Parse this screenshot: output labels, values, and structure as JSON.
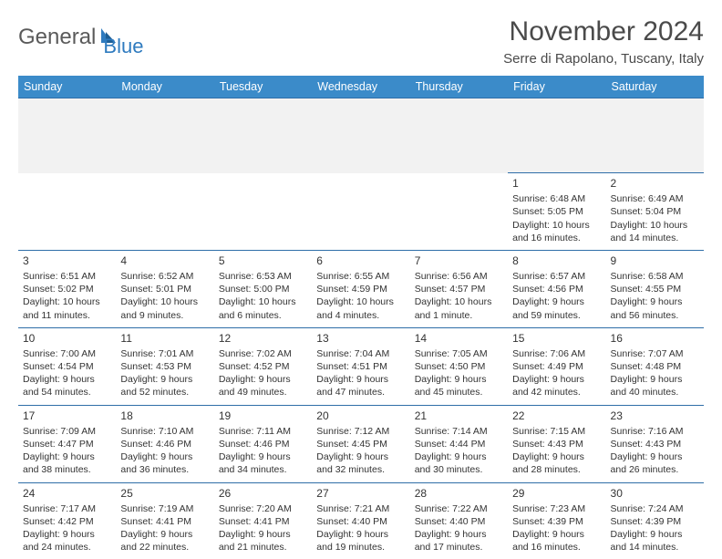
{
  "logo": {
    "part1": "General",
    "part2": "Blue"
  },
  "title": "November 2024",
  "location": "Serre di Rapolano, Tuscany, Italy",
  "colors": {
    "header_bg": "#3b8bc9",
    "header_text": "#ffffff",
    "border": "#2f6ea8",
    "logo_gray": "#5a5a5a",
    "logo_blue": "#2f7bbf",
    "text": "#333333",
    "background": "#ffffff",
    "spacer": "#f2f2f2"
  },
  "weekdays": [
    "Sunday",
    "Monday",
    "Tuesday",
    "Wednesday",
    "Thursday",
    "Friday",
    "Saturday"
  ],
  "weeks": [
    [
      {
        "empty": true
      },
      {
        "empty": true
      },
      {
        "empty": true
      },
      {
        "empty": true
      },
      {
        "empty": true
      },
      {
        "day": "1",
        "sunrise": "Sunrise: 6:48 AM",
        "sunset": "Sunset: 5:05 PM",
        "daylight1": "Daylight: 10 hours",
        "daylight2": "and 16 minutes."
      },
      {
        "day": "2",
        "sunrise": "Sunrise: 6:49 AM",
        "sunset": "Sunset: 5:04 PM",
        "daylight1": "Daylight: 10 hours",
        "daylight2": "and 14 minutes."
      }
    ],
    [
      {
        "day": "3",
        "sunrise": "Sunrise: 6:51 AM",
        "sunset": "Sunset: 5:02 PM",
        "daylight1": "Daylight: 10 hours",
        "daylight2": "and 11 minutes."
      },
      {
        "day": "4",
        "sunrise": "Sunrise: 6:52 AM",
        "sunset": "Sunset: 5:01 PM",
        "daylight1": "Daylight: 10 hours",
        "daylight2": "and 9 minutes."
      },
      {
        "day": "5",
        "sunrise": "Sunrise: 6:53 AM",
        "sunset": "Sunset: 5:00 PM",
        "daylight1": "Daylight: 10 hours",
        "daylight2": "and 6 minutes."
      },
      {
        "day": "6",
        "sunrise": "Sunrise: 6:55 AM",
        "sunset": "Sunset: 4:59 PM",
        "daylight1": "Daylight: 10 hours",
        "daylight2": "and 4 minutes."
      },
      {
        "day": "7",
        "sunrise": "Sunrise: 6:56 AM",
        "sunset": "Sunset: 4:57 PM",
        "daylight1": "Daylight: 10 hours",
        "daylight2": "and 1 minute."
      },
      {
        "day": "8",
        "sunrise": "Sunrise: 6:57 AM",
        "sunset": "Sunset: 4:56 PM",
        "daylight1": "Daylight: 9 hours",
        "daylight2": "and 59 minutes."
      },
      {
        "day": "9",
        "sunrise": "Sunrise: 6:58 AM",
        "sunset": "Sunset: 4:55 PM",
        "daylight1": "Daylight: 9 hours",
        "daylight2": "and 56 minutes."
      }
    ],
    [
      {
        "day": "10",
        "sunrise": "Sunrise: 7:00 AM",
        "sunset": "Sunset: 4:54 PM",
        "daylight1": "Daylight: 9 hours",
        "daylight2": "and 54 minutes."
      },
      {
        "day": "11",
        "sunrise": "Sunrise: 7:01 AM",
        "sunset": "Sunset: 4:53 PM",
        "daylight1": "Daylight: 9 hours",
        "daylight2": "and 52 minutes."
      },
      {
        "day": "12",
        "sunrise": "Sunrise: 7:02 AM",
        "sunset": "Sunset: 4:52 PM",
        "daylight1": "Daylight: 9 hours",
        "daylight2": "and 49 minutes."
      },
      {
        "day": "13",
        "sunrise": "Sunrise: 7:04 AM",
        "sunset": "Sunset: 4:51 PM",
        "daylight1": "Daylight: 9 hours",
        "daylight2": "and 47 minutes."
      },
      {
        "day": "14",
        "sunrise": "Sunrise: 7:05 AM",
        "sunset": "Sunset: 4:50 PM",
        "daylight1": "Daylight: 9 hours",
        "daylight2": "and 45 minutes."
      },
      {
        "day": "15",
        "sunrise": "Sunrise: 7:06 AM",
        "sunset": "Sunset: 4:49 PM",
        "daylight1": "Daylight: 9 hours",
        "daylight2": "and 42 minutes."
      },
      {
        "day": "16",
        "sunrise": "Sunrise: 7:07 AM",
        "sunset": "Sunset: 4:48 PM",
        "daylight1": "Daylight: 9 hours",
        "daylight2": "and 40 minutes."
      }
    ],
    [
      {
        "day": "17",
        "sunrise": "Sunrise: 7:09 AM",
        "sunset": "Sunset: 4:47 PM",
        "daylight1": "Daylight: 9 hours",
        "daylight2": "and 38 minutes."
      },
      {
        "day": "18",
        "sunrise": "Sunrise: 7:10 AM",
        "sunset": "Sunset: 4:46 PM",
        "daylight1": "Daylight: 9 hours",
        "daylight2": "and 36 minutes."
      },
      {
        "day": "19",
        "sunrise": "Sunrise: 7:11 AM",
        "sunset": "Sunset: 4:46 PM",
        "daylight1": "Daylight: 9 hours",
        "daylight2": "and 34 minutes."
      },
      {
        "day": "20",
        "sunrise": "Sunrise: 7:12 AM",
        "sunset": "Sunset: 4:45 PM",
        "daylight1": "Daylight: 9 hours",
        "daylight2": "and 32 minutes."
      },
      {
        "day": "21",
        "sunrise": "Sunrise: 7:14 AM",
        "sunset": "Sunset: 4:44 PM",
        "daylight1": "Daylight: 9 hours",
        "daylight2": "and 30 minutes."
      },
      {
        "day": "22",
        "sunrise": "Sunrise: 7:15 AM",
        "sunset": "Sunset: 4:43 PM",
        "daylight1": "Daylight: 9 hours",
        "daylight2": "and 28 minutes."
      },
      {
        "day": "23",
        "sunrise": "Sunrise: 7:16 AM",
        "sunset": "Sunset: 4:43 PM",
        "daylight1": "Daylight: 9 hours",
        "daylight2": "and 26 minutes."
      }
    ],
    [
      {
        "day": "24",
        "sunrise": "Sunrise: 7:17 AM",
        "sunset": "Sunset: 4:42 PM",
        "daylight1": "Daylight: 9 hours",
        "daylight2": "and 24 minutes."
      },
      {
        "day": "25",
        "sunrise": "Sunrise: 7:19 AM",
        "sunset": "Sunset: 4:41 PM",
        "daylight1": "Daylight: 9 hours",
        "daylight2": "and 22 minutes."
      },
      {
        "day": "26",
        "sunrise": "Sunrise: 7:20 AM",
        "sunset": "Sunset: 4:41 PM",
        "daylight1": "Daylight: 9 hours",
        "daylight2": "and 21 minutes."
      },
      {
        "day": "27",
        "sunrise": "Sunrise: 7:21 AM",
        "sunset": "Sunset: 4:40 PM",
        "daylight1": "Daylight: 9 hours",
        "daylight2": "and 19 minutes."
      },
      {
        "day": "28",
        "sunrise": "Sunrise: 7:22 AM",
        "sunset": "Sunset: 4:40 PM",
        "daylight1": "Daylight: 9 hours",
        "daylight2": "and 17 minutes."
      },
      {
        "day": "29",
        "sunrise": "Sunrise: 7:23 AM",
        "sunset": "Sunset: 4:39 PM",
        "daylight1": "Daylight: 9 hours",
        "daylight2": "and 16 minutes."
      },
      {
        "day": "30",
        "sunrise": "Sunrise: 7:24 AM",
        "sunset": "Sunset: 4:39 PM",
        "daylight1": "Daylight: 9 hours",
        "daylight2": "and 14 minutes."
      }
    ]
  ]
}
